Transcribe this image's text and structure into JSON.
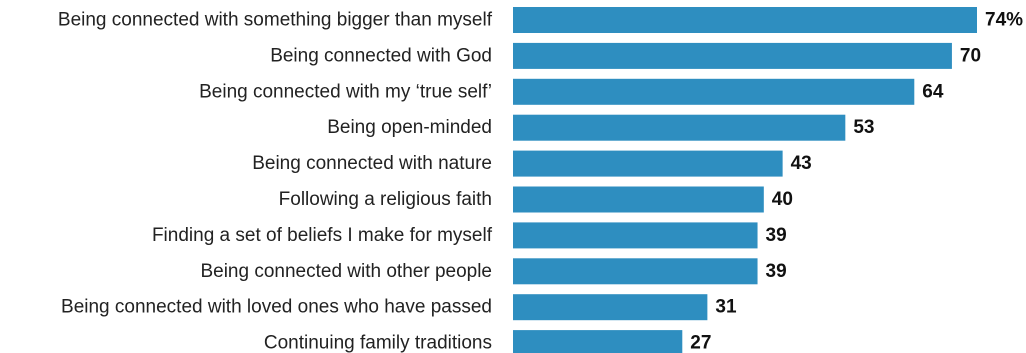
{
  "colors": {
    "bar": "#2e8ec0",
    "label": "#222222",
    "value": "#111111"
  },
  "chart_data": {
    "type": "bar",
    "orientation": "horizontal",
    "categories": [
      "Being connected with something bigger than myself",
      "Being connected with God",
      "Being connected with my ‘true self’",
      "Being open-minded",
      "Being connected with nature",
      "Following a religious faith",
      "Finding a set of beliefs I make for myself",
      "Being connected with other people",
      "Being connected with loved ones who have passed",
      "Continuing family traditions"
    ],
    "values": [
      74,
      70,
      64,
      53,
      43,
      40,
      39,
      39,
      31,
      27
    ],
    "value_labels": [
      "74%",
      "70",
      "64",
      "53",
      "43",
      "40",
      "39",
      "39",
      "31",
      "27"
    ],
    "xlim": [
      0,
      74
    ],
    "grid": false,
    "legend": "none"
  }
}
